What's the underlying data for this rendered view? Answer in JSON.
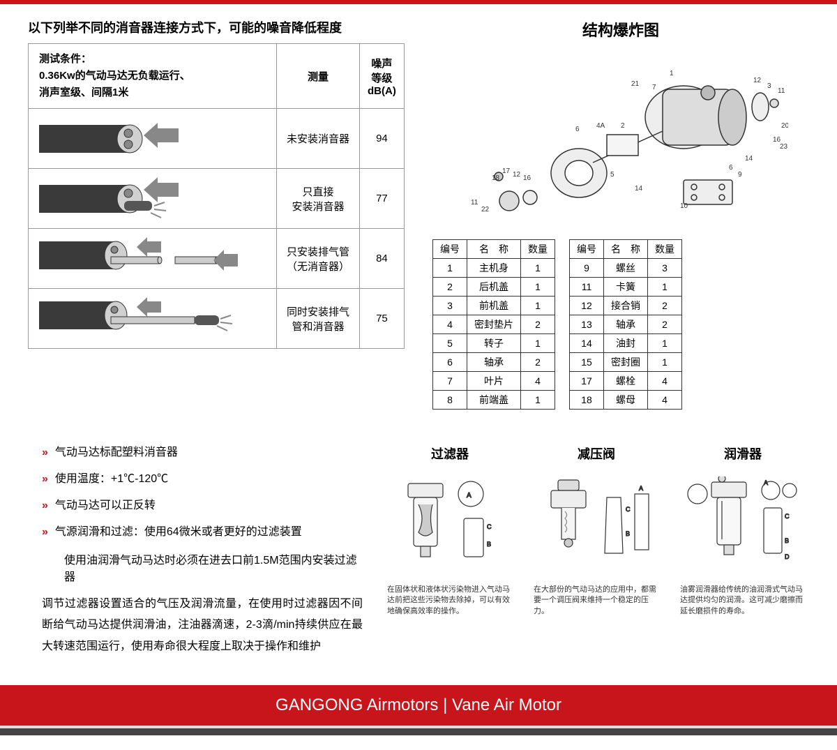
{
  "colors": {
    "brand_red": "#c8151b",
    "border_gray": "#999",
    "dark_gray": "#444"
  },
  "noise_section": {
    "title": "以下列举不同的消音器连接方式下，可能的噪音降低程度",
    "conditions_label": "测试条件：",
    "conditions_line1": "0.36Kw的气动马达无负载运行、",
    "conditions_line2": "消声室级、间隔1米",
    "col_measure": "测量",
    "col_db": "噪声\n等级\ndB(A)",
    "rows": [
      {
        "label": "未安装消音器",
        "db": "94"
      },
      {
        "label_line1": "只直接",
        "label_line2": "安装消音器",
        "db": "77"
      },
      {
        "label_line1": "只安装排气管",
        "label_line2": "（无消音器）",
        "db": "84"
      },
      {
        "label_line1": "同时安装排气",
        "label_line2": "管和消音器",
        "db": "75"
      }
    ]
  },
  "exploded": {
    "title": "结构爆炸图",
    "col_no": "编号",
    "col_name": "名　称",
    "col_qty": "数量",
    "left": [
      {
        "no": "1",
        "name": "主机身",
        "qty": "1"
      },
      {
        "no": "2",
        "name": "后机盖",
        "qty": "1"
      },
      {
        "no": "3",
        "name": "前机盖",
        "qty": "1"
      },
      {
        "no": "4",
        "name": "密封垫片",
        "qty": "2"
      },
      {
        "no": "5",
        "name": "转子",
        "qty": "1"
      },
      {
        "no": "6",
        "name": "轴承",
        "qty": "2"
      },
      {
        "no": "7",
        "name": "叶片",
        "qty": "4"
      },
      {
        "no": "8",
        "name": "前端盖",
        "qty": "1"
      }
    ],
    "right": [
      {
        "no": "9",
        "name": "螺丝",
        "qty": "3"
      },
      {
        "no": "11",
        "name": "卡簧",
        "qty": "1"
      },
      {
        "no": "12",
        "name": "接合销",
        "qty": "2"
      },
      {
        "no": "13",
        "name": "轴承",
        "qty": "2"
      },
      {
        "no": "14",
        "name": "油封",
        "qty": "1"
      },
      {
        "no": "15",
        "name": "密封圈",
        "qty": "1"
      },
      {
        "no": "17",
        "name": "螺栓",
        "qty": "4"
      },
      {
        "no": "18",
        "name": "螺母",
        "qty": "4"
      }
    ]
  },
  "notes": {
    "items": [
      "气动马达标配塑料消音器",
      "使用温度：+1℃-120℃",
      "气动马达可以正反转",
      "气源润滑和过滤：使用64微米或者更好的过滤装置"
    ],
    "sub_note": "使用油润滑气动马达时必须在进去口前1.5M范围内安装过滤器",
    "paragraph": "调节过滤器设置适合的气压及润滑流量，在使用时过滤器因不间断给气动马达提供润滑油，注油器滴速，2-3滴/min持续供应在最大转速范围运行，使用寿命很大程度上取决于操作和维护"
  },
  "frl": {
    "items": [
      {
        "title": "过滤器",
        "caption": "在固体状和液体状污染物进入气动马达前把这些污染物去除掉，可以有效地确保高效率的操作。"
      },
      {
        "title": "减压阀",
        "caption": "在大部份的气动马达的应用中，都需要一个调压阀来维持一个稳定的压力。"
      },
      {
        "title": "润滑器",
        "caption": "油雾润滑器给传统的油润滑式气动马达提供均匀的润滑。这可减少磨擦而延长磨损件的寿命。"
      }
    ]
  },
  "footer": {
    "text": "GANGONG Airmotors  |  Vane Air Motor"
  }
}
